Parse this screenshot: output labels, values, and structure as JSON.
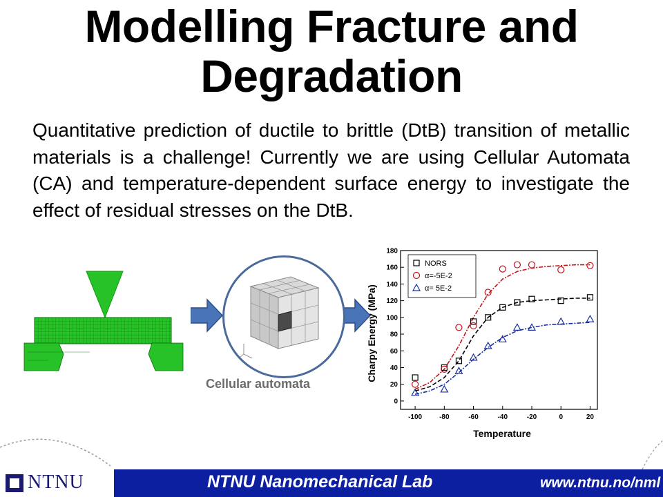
{
  "slide": {
    "title_line1": "Modelling Fracture and",
    "title_line2": "Degradation",
    "body": "Quantitative prediction of ductile to brittle (DtB) transition of metallic materials is a challenge! Currently we are using Cellular Automata (CA) and temperature-dependent surface energy to investigate the effect of residual stresses on the DtB.",
    "ca_caption": "Cellular automata",
    "colors": {
      "fem_green": "#27c227",
      "arrow_blue": "#4a74b8",
      "footer_blue": "#0b1fa0"
    }
  },
  "footer": {
    "logo_text": "NTNU",
    "lab_name": "NTNU Nanomechanical Lab",
    "url": "www.ntnu.no/nml"
  },
  "chart_data": {
    "type": "scatter",
    "xlabel": "Temperature",
    "ylabel": "Charpy Energy (MPa)",
    "xlim": [
      -110,
      25
    ],
    "ylim": [
      -10,
      180
    ],
    "xticks": [
      -100,
      -80,
      -60,
      -40,
      -20,
      0,
      20
    ],
    "yticks": [
      0,
      20,
      40,
      60,
      80,
      100,
      120,
      140,
      160,
      180
    ],
    "legend_position": "top-left",
    "series": [
      {
        "name": "NORS",
        "marker": "square",
        "color": "#000000",
        "x": [
          -100,
          -80,
          -70,
          -60,
          -50,
          -40,
          -30,
          -20,
          0,
          20
        ],
        "y": [
          28,
          40,
          48,
          95,
          100,
          112,
          118,
          122,
          120,
          124
        ],
        "fit_x": [
          -100,
          -90,
          -80,
          -70,
          -60,
          -50,
          -40,
          -30,
          -20,
          -10,
          0,
          10,
          20
        ],
        "fit_y": [
          12,
          17,
          28,
          48,
          78,
          100,
          112,
          118,
          120,
          121,
          122,
          123,
          123
        ]
      },
      {
        "name": "α=-5E-2",
        "marker": "circle",
        "color": "#c0141a",
        "x": [
          -100,
          -80,
          -70,
          -60,
          -50,
          -40,
          -30,
          -20,
          0,
          20
        ],
        "y": [
          20,
          38,
          88,
          90,
          130,
          158,
          163,
          163,
          157,
          162
        ],
        "fit_x": [
          -100,
          -90,
          -80,
          -70,
          -60,
          -50,
          -40,
          -30,
          -20,
          -10,
          0,
          10,
          20
        ],
        "fit_y": [
          14,
          22,
          38,
          66,
          100,
          128,
          146,
          155,
          159,
          161,
          162,
          163,
          163
        ]
      },
      {
        "name": "α= 5E-2",
        "marker": "triangle",
        "color": "#1a2fa0",
        "x": [
          -100,
          -80,
          -70,
          -60,
          -50,
          -40,
          -30,
          -20,
          0,
          20
        ],
        "y": [
          10,
          14,
          36,
          52,
          66,
          74,
          88,
          88,
          95,
          98
        ],
        "fit_x": [
          -100,
          -90,
          -80,
          -70,
          -60,
          -50,
          -40,
          -30,
          -20,
          -10,
          0,
          10,
          20
        ],
        "fit_y": [
          8,
          12,
          20,
          34,
          50,
          64,
          76,
          84,
          88,
          91,
          92,
          93,
          94
        ]
      }
    ]
  }
}
